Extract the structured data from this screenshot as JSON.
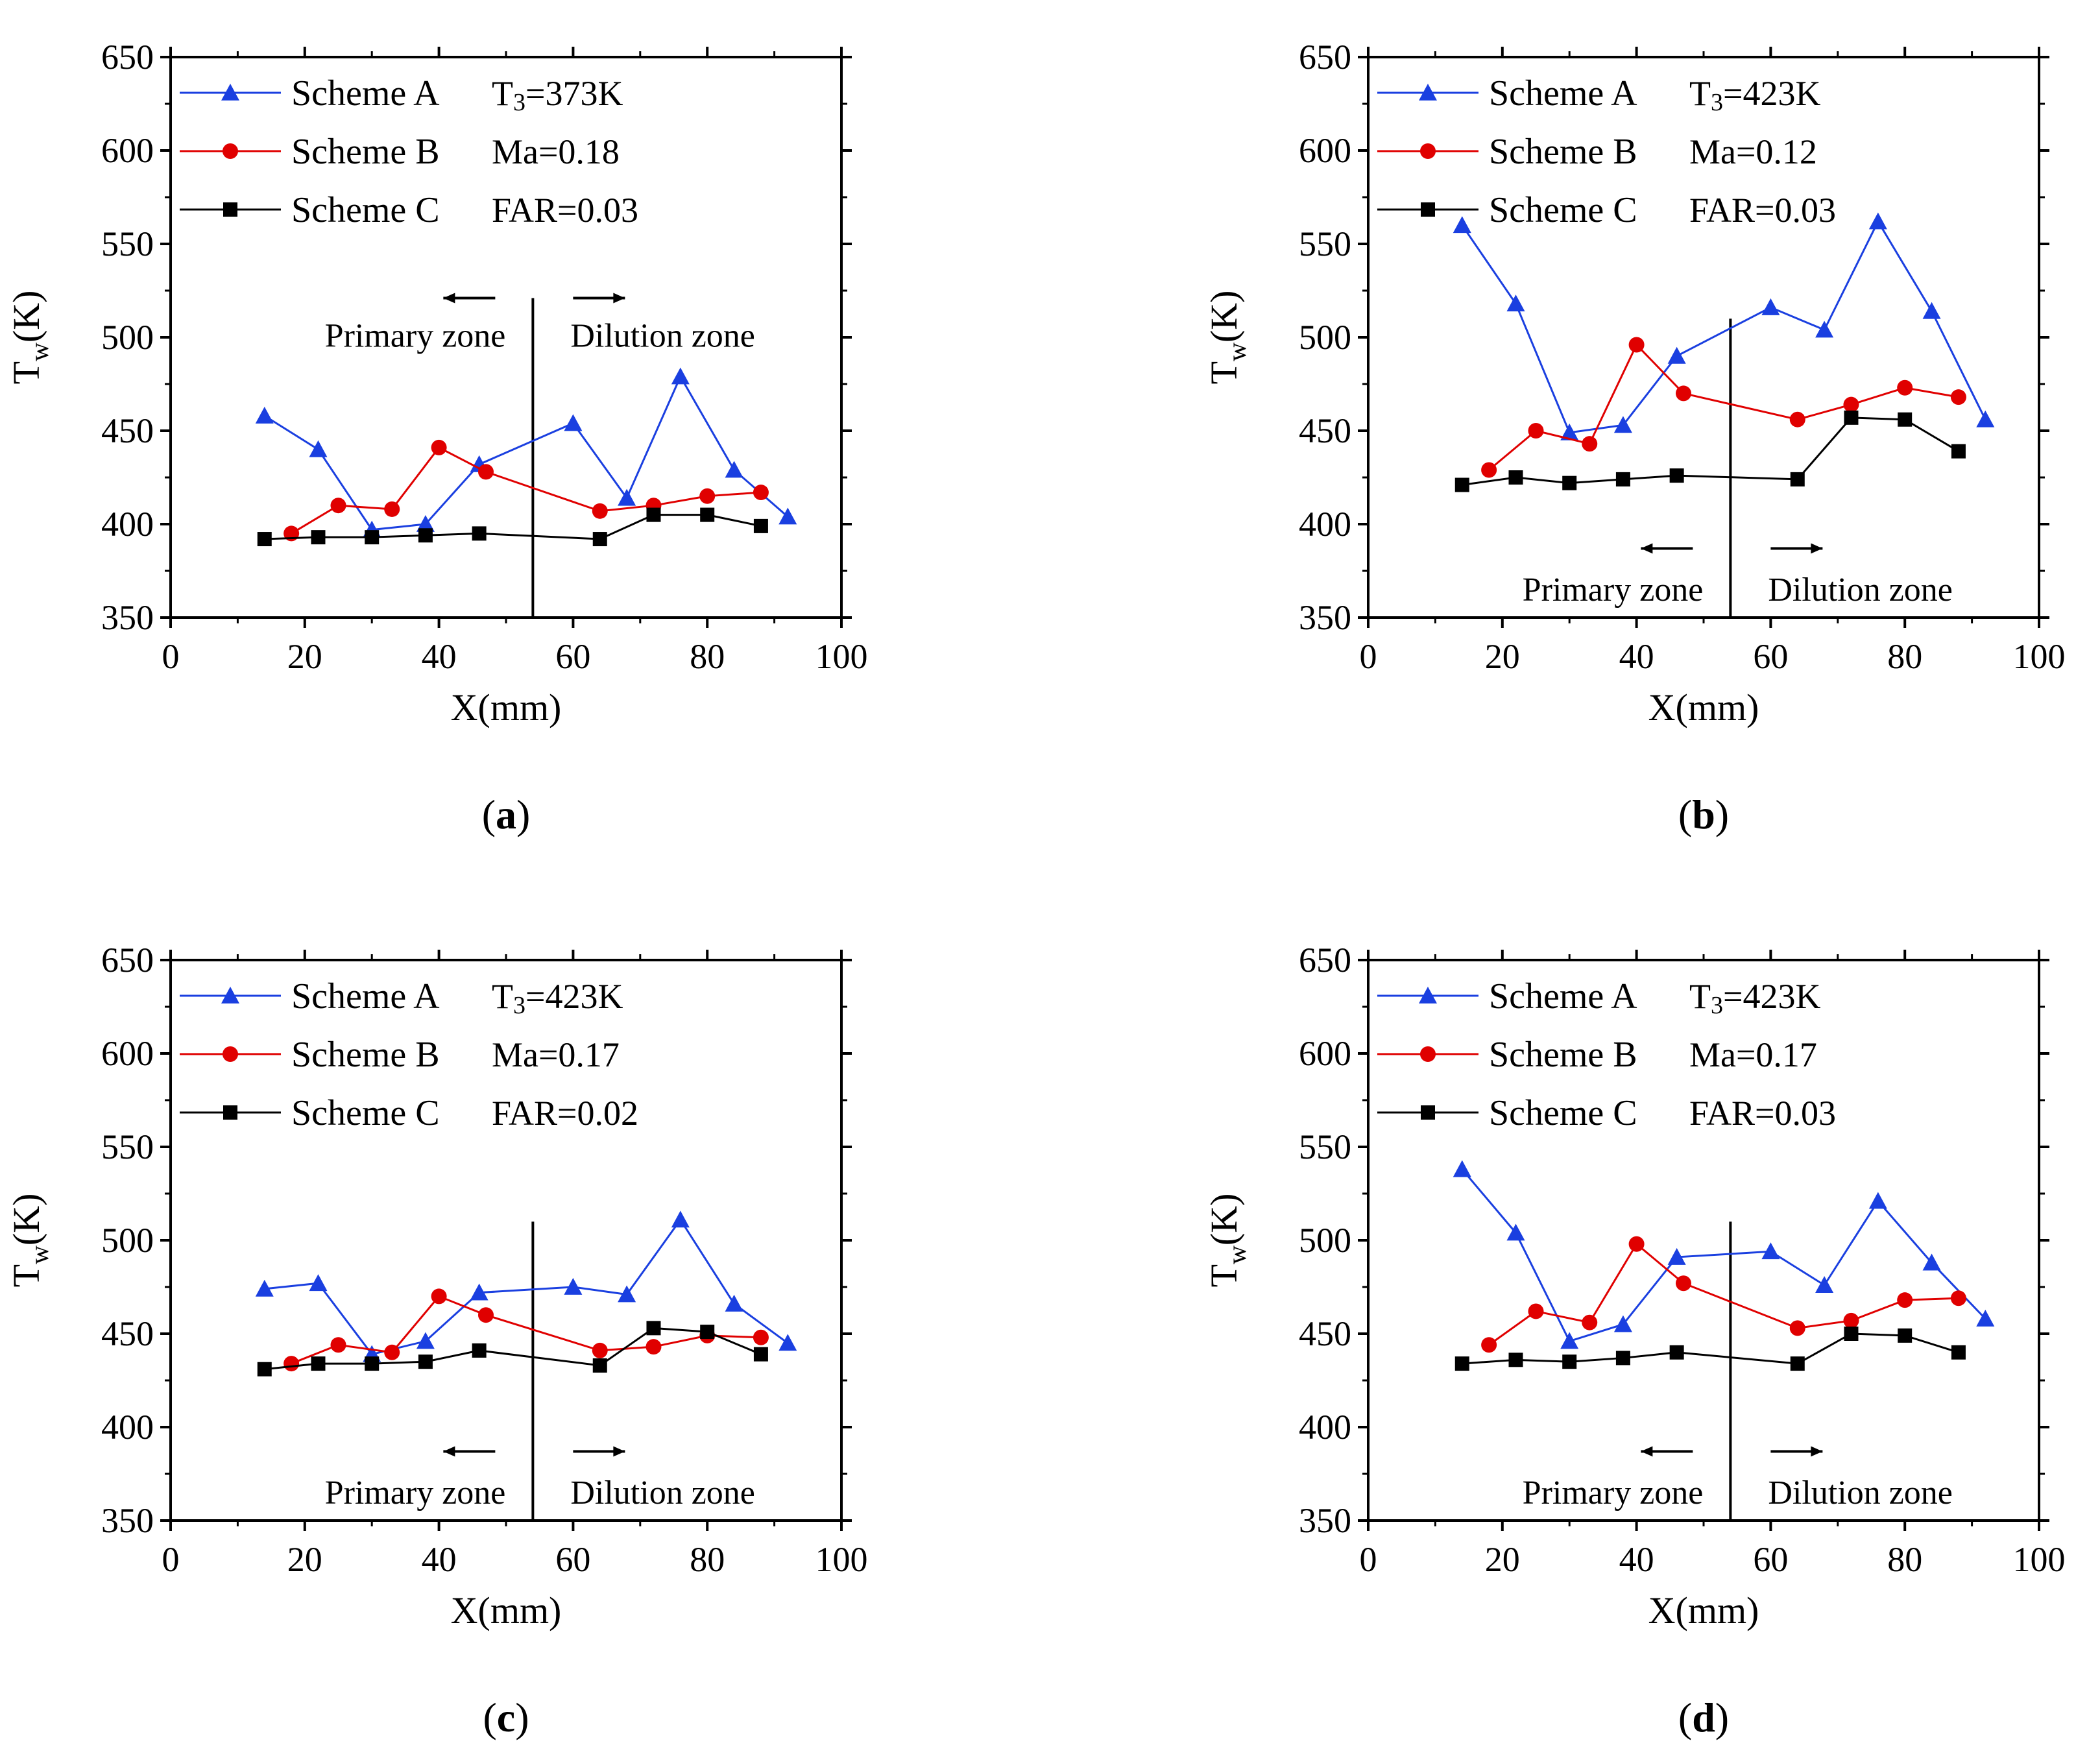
{
  "colors": {
    "scheme_a": "#1a3fe0",
    "scheme_b": "#e00000",
    "scheme_c": "#000000"
  },
  "chart_data": [
    {
      "type": "line",
      "panel_label": "a",
      "xlabel": "X(mm)",
      "ylabel": "T",
      "ylabel_sub": "w",
      "ylabel_unit": "(K)",
      "xlim": [
        0,
        100
      ],
      "ylim": [
        350,
        650
      ],
      "xticks": [
        "0",
        "20",
        "40",
        "60",
        "80",
        "100"
      ],
      "yticks": [
        "350",
        "400",
        "450",
        "500",
        "550",
        "600",
        "650"
      ],
      "legend": [
        "Scheme A",
        "Scheme B",
        "Scheme C"
      ],
      "conditions": [
        "T3=373K",
        "Ma=0.18",
        "FAR=0.03"
      ],
      "zones": [
        "Primary zone",
        "Dilution zone"
      ],
      "zone_position": "upper",
      "divider_x": 54,
      "series": [
        {
          "name": "Scheme A",
          "marker": "triangle",
          "x": [
            14,
            22,
            30,
            38,
            46,
            60,
            68,
            76,
            84,
            92
          ],
          "values": [
            458,
            440,
            397,
            400,
            432,
            454,
            414,
            479,
            429,
            404
          ]
        },
        {
          "name": "Scheme B",
          "marker": "circle",
          "x": [
            18,
            25,
            33,
            40,
            47,
            64,
            72,
            80,
            88
          ],
          "values": [
            395,
            410,
            408,
            441,
            428,
            407,
            410,
            415,
            417
          ]
        },
        {
          "name": "Scheme C",
          "marker": "square",
          "x": [
            14,
            22,
            30,
            38,
            46,
            64,
            72,
            80,
            88
          ],
          "values": [
            392,
            393,
            393,
            394,
            395,
            392,
            405,
            405,
            399
          ]
        }
      ]
    },
    {
      "type": "line",
      "panel_label": "b",
      "xlabel": "X(mm)",
      "ylabel": "T",
      "ylabel_sub": "w",
      "ylabel_unit": "(K)",
      "xlim": [
        0,
        100
      ],
      "ylim": [
        350,
        650
      ],
      "xticks": [
        "0",
        "20",
        "40",
        "60",
        "80",
        "100"
      ],
      "yticks": [
        "350",
        "400",
        "450",
        "500",
        "550",
        "600",
        "650"
      ],
      "legend": [
        "Scheme A",
        "Scheme B",
        "Scheme C"
      ],
      "conditions": [
        "T3=423K",
        "Ma=0.12",
        "FAR=0.03"
      ],
      "zones": [
        "Primary zone",
        "Dilution zone"
      ],
      "zone_position": "lower",
      "divider_x": 54,
      "series": [
        {
          "name": "Scheme A",
          "marker": "triangle",
          "x": [
            14,
            22,
            30,
            38,
            46,
            60,
            68,
            76,
            84,
            92
          ],
          "values": [
            560,
            518,
            449,
            453,
            490,
            516,
            504,
            562,
            514,
            456
          ]
        },
        {
          "name": "Scheme B",
          "marker": "circle",
          "x": [
            18,
            25,
            33,
            40,
            47,
            64,
            72,
            80,
            88
          ],
          "values": [
            429,
            450,
            443,
            496,
            470,
            456,
            464,
            473,
            468
          ]
        },
        {
          "name": "Scheme C",
          "marker": "square",
          "x": [
            14,
            22,
            30,
            38,
            46,
            64,
            72,
            80,
            88
          ],
          "values": [
            421,
            425,
            422,
            424,
            426,
            424,
            457,
            456,
            439
          ]
        }
      ]
    },
    {
      "type": "line",
      "panel_label": "c",
      "xlabel": "X(mm)",
      "ylabel": "T",
      "ylabel_sub": "w",
      "ylabel_unit": "(K)",
      "xlim": [
        0,
        100
      ],
      "ylim": [
        350,
        650
      ],
      "xticks": [
        "0",
        "20",
        "40",
        "60",
        "80",
        "100"
      ],
      "yticks": [
        "350",
        "400",
        "450",
        "500",
        "550",
        "600",
        "650"
      ],
      "legend": [
        "Scheme A",
        "Scheme B",
        "Scheme C"
      ],
      "conditions": [
        "T3=423K",
        "Ma=0.17",
        "FAR=0.02"
      ],
      "zones": [
        "Primary zone",
        "Dilution zone"
      ],
      "zone_position": "lower",
      "divider_x": 54,
      "series": [
        {
          "name": "Scheme A",
          "marker": "triangle",
          "x": [
            14,
            22,
            30,
            38,
            46,
            60,
            68,
            76,
            84,
            92
          ],
          "values": [
            474,
            477,
            439,
            446,
            472,
            475,
            471,
            511,
            466,
            445
          ]
        },
        {
          "name": "Scheme B",
          "marker": "circle",
          "x": [
            18,
            25,
            33,
            40,
            47,
            64,
            72,
            80,
            88
          ],
          "values": [
            434,
            444,
            440,
            470,
            460,
            441,
            443,
            449,
            448
          ]
        },
        {
          "name": "Scheme C",
          "marker": "square",
          "x": [
            14,
            22,
            30,
            38,
            46,
            64,
            72,
            80,
            88
          ],
          "values": [
            431,
            434,
            434,
            435,
            441,
            433,
            453,
            451,
            439
          ]
        }
      ]
    },
    {
      "type": "line",
      "panel_label": "d",
      "xlabel": "X(mm)",
      "ylabel": "T",
      "ylabel_sub": "w",
      "ylabel_unit": "(K)",
      "xlim": [
        0,
        100
      ],
      "ylim": [
        350,
        650
      ],
      "xticks": [
        "0",
        "20",
        "40",
        "60",
        "80",
        "100"
      ],
      "yticks": [
        "350",
        "400",
        "450",
        "500",
        "550",
        "600",
        "650"
      ],
      "legend": [
        "Scheme A",
        "Scheme B",
        "Scheme C"
      ],
      "conditions": [
        "T3=423K",
        "Ma=0.17",
        "FAR=0.03"
      ],
      "zones": [
        "Primary zone",
        "Dilution zone"
      ],
      "zone_position": "lower",
      "divider_x": 54,
      "series": [
        {
          "name": "Scheme A",
          "marker": "triangle",
          "x": [
            14,
            22,
            30,
            38,
            46,
            60,
            68,
            76,
            84,
            92
          ],
          "values": [
            538,
            504,
            446,
            455,
            491,
            494,
            476,
            521,
            488,
            458
          ]
        },
        {
          "name": "Scheme B",
          "marker": "circle",
          "x": [
            18,
            25,
            33,
            40,
            47,
            64,
            72,
            80,
            88
          ],
          "values": [
            444,
            462,
            456,
            498,
            477,
            453,
            457,
            468,
            469
          ]
        },
        {
          "name": "Scheme C",
          "marker": "square",
          "x": [
            14,
            22,
            30,
            38,
            46,
            64,
            72,
            80,
            88
          ],
          "values": [
            434,
            436,
            435,
            437,
            440,
            434,
            450,
            449,
            440
          ]
        }
      ]
    }
  ]
}
